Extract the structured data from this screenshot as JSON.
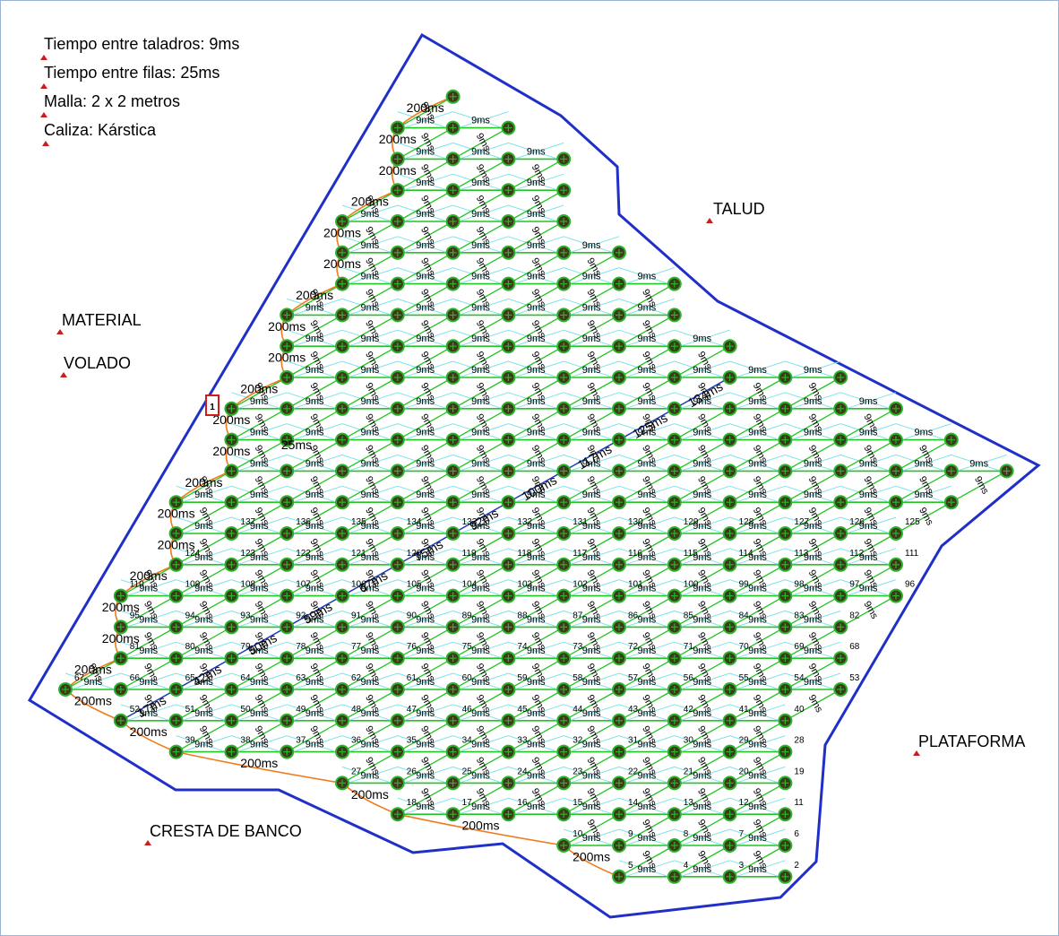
{
  "notes": [
    "Tiempo entre taladros: 9ms",
    "Tiempo entre filas: 25ms",
    "Malla: 2 x 2 metros",
    "Caliza: Kárstica"
  ],
  "area_labels": {
    "material": "MATERIAL",
    "volado": "VOLADO",
    "talud": "TALUD",
    "plataforma": "PLATAFORMA",
    "cresta": "CRESTA DE BANCO"
  },
  "initiation_label": "1",
  "delay_labels": {
    "hole": "9ms",
    "row": "25ms",
    "edge": "200ms",
    "d17": "17ms",
    "d42": "42ms",
    "d50": "50ms",
    "d59": "59ms",
    "d67": "67ms",
    "d75": "75ms",
    "d92": "92ms",
    "d100": "100ms",
    "d117": "117ms",
    "d125": "125ms",
    "d134": "134ms",
    "d142": "142ms"
  },
  "colors": {
    "boundary": "#1f2fc8",
    "hole_to_hole": "#22c522",
    "row_ties": "#7fe3ea",
    "edge_ties": "#f07c1e",
    "marker": "#c81e1e",
    "hole_fill": "#3d3a1a",
    "hole_ring": "#2bb32b"
  },
  "holes": {
    "start": 2,
    "end": 137
  }
}
